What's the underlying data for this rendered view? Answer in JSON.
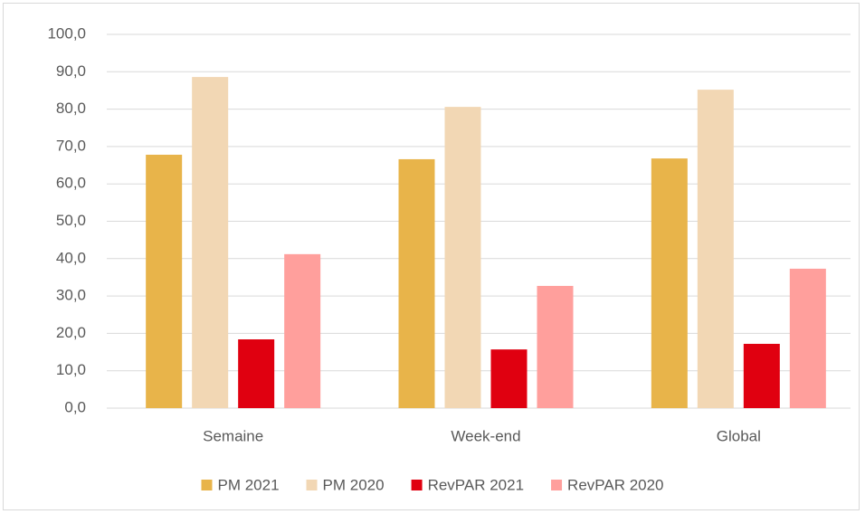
{
  "chart_data": {
    "type": "bar",
    "categories": [
      "Semaine",
      "Week-end",
      "Global"
    ],
    "series": [
      {
        "name": "PM 2021",
        "color": "#e8b44a",
        "values": [
          67.8,
          66.6,
          66.8
        ]
      },
      {
        "name": "PM 2020",
        "color": "#f2d7b4",
        "values": [
          88.6,
          80.6,
          85.2
        ]
      },
      {
        "name": "RevPAR 2021",
        "color": "#e00010",
        "values": [
          18.4,
          15.7,
          17.2
        ]
      },
      {
        "name": "RevPAR 2020",
        "color": "#ff9f9c",
        "values": [
          41.2,
          32.7,
          37.3
        ]
      }
    ],
    "ylim": [
      0,
      100
    ],
    "yticks": [
      {
        "value": 0,
        "label": "0,0"
      },
      {
        "value": 10,
        "label": "10,0"
      },
      {
        "value": 20,
        "label": "20,0"
      },
      {
        "value": 30,
        "label": "30,0"
      },
      {
        "value": 40,
        "label": "40,0"
      },
      {
        "value": 50,
        "label": "50,0"
      },
      {
        "value": 60,
        "label": "60,0"
      },
      {
        "value": 70,
        "label": "70,0"
      },
      {
        "value": 80,
        "label": "80,0"
      },
      {
        "value": 90,
        "label": "90,0"
      },
      {
        "value": 100,
        "label": "100,0"
      }
    ],
    "grid": true,
    "legend": "bottom"
  }
}
